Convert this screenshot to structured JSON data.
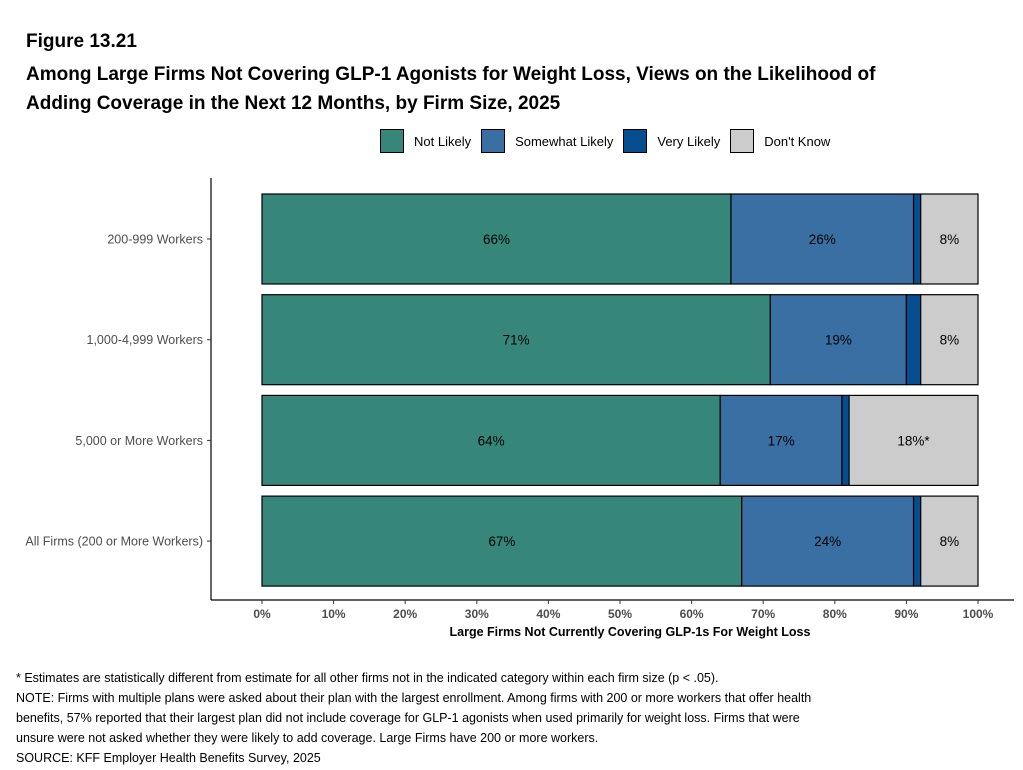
{
  "figure_label": "Figure 13.21",
  "title_lines": [
    "Among Large Firms Not Covering GLP-1 Agonists for Weight Loss, Views on the Likelihood of",
    "Adding Coverage in the Next 12 Months, by Firm Size, 2025"
  ],
  "footnotes": [
    "* Estimates are statistically different from estimate for all other firms not in the indicated category within each firm size (p < .05).",
    "NOTE: Firms with multiple plans were asked about their plan with the largest enrollment.  Among firms with 200 or more workers that offer health",
    "benefits, 57% reported that their largest plan did not include coverage for GLP-1 agonists when used primarily for weight loss. Firms that were",
    "unsure were not asked whether they were likely to add coverage. Large Firms have 200 or more workers.",
    "SOURCE: KFF Employer Health Benefits Survey, 2025"
  ],
  "chart_data": {
    "type": "bar",
    "orientation": "horizontal",
    "stacked": true,
    "title": "",
    "xlabel": "Large Firms Not Currently Covering GLP-1s For Weight Loss",
    "ylabel": "",
    "xlim": [
      0,
      100
    ],
    "x_ticks": [
      "0%",
      "10%",
      "20%",
      "30%",
      "40%",
      "50%",
      "60%",
      "70%",
      "80%",
      "90%",
      "100%"
    ],
    "legend_position": "top",
    "categories": [
      "200-999 Workers",
      "1,000-4,999 Workers",
      "5,000 or More Workers",
      "All Firms (200 or More Workers)"
    ],
    "series": [
      {
        "name": "Not Likely",
        "color": "#36877a",
        "values": [
          65.5,
          71,
          64,
          67
        ],
        "labels": [
          "66%",
          "71%",
          "64%",
          "67%"
        ]
      },
      {
        "name": "Somewhat Likely",
        "color": "#3a6fa4",
        "values": [
          25.5,
          19,
          17,
          24
        ],
        "labels": [
          "26%",
          "19%",
          "17%",
          "24%"
        ]
      },
      {
        "name": "Very Likely",
        "color": "#064e8f",
        "values": [
          1,
          2,
          1,
          1
        ],
        "labels": [
          "",
          "",
          "",
          ""
        ]
      },
      {
        "name": "Don't Know",
        "color": "#cccccc",
        "values": [
          8,
          8,
          18,
          8
        ],
        "labels": [
          "8%",
          "8%",
          "18%*",
          "8%"
        ]
      }
    ]
  }
}
